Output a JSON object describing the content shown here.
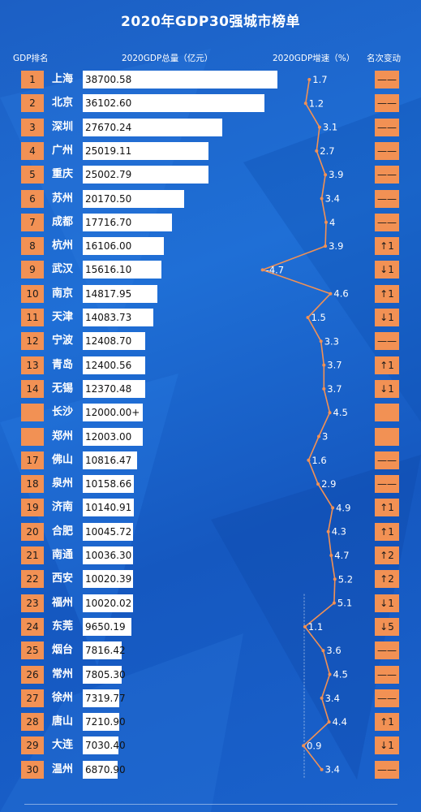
{
  "title": "2020年GDP30强城市榜单",
  "headers": {
    "rank": "GDP排名",
    "gdp": "2020GDP总量（亿元）",
    "growth": "2020GDP增速（%）",
    "change": "名次变动"
  },
  "colors": {
    "accent": "#f29154",
    "line": "#f29154",
    "bar": "#ffffff",
    "background": "#1c5fc4"
  },
  "chart_data": {
    "type": "bar",
    "title": "2020年GDP30强城市榜单",
    "gdp_max": 38700.58,
    "growth_range": [
      -4.7,
      5.2
    ],
    "rows": [
      {
        "rank": "1",
        "city": "上海",
        "gdp_label": "38700.58",
        "gdp": 38700.58,
        "growth_label": "1.7",
        "growth": 1.7,
        "change": "——"
      },
      {
        "rank": "2",
        "city": "北京",
        "gdp_label": "36102.60",
        "gdp": 36102.6,
        "growth_label": "1.2",
        "growth": 1.2,
        "change": "——"
      },
      {
        "rank": "3",
        "city": "深圳",
        "gdp_label": "27670.24",
        "gdp": 27670.24,
        "growth_label": "3.1",
        "growth": 3.1,
        "change": "——"
      },
      {
        "rank": "4",
        "city": "广州",
        "gdp_label": "25019.11",
        "gdp": 25019.11,
        "growth_label": "2.7",
        "growth": 2.7,
        "change": "——"
      },
      {
        "rank": "5",
        "city": "重庆",
        "gdp_label": "25002.79",
        "gdp": 25002.79,
        "growth_label": "3.9",
        "growth": 3.9,
        "change": "——"
      },
      {
        "rank": "6",
        "city": "苏州",
        "gdp_label": "20170.50",
        "gdp": 20170.5,
        "growth_label": "3.4",
        "growth": 3.4,
        "change": "——"
      },
      {
        "rank": "7",
        "city": "成都",
        "gdp_label": "17716.70",
        "gdp": 17716.7,
        "growth_label": "4",
        "growth": 4,
        "change": "——"
      },
      {
        "rank": "8",
        "city": "杭州",
        "gdp_label": "16106.00",
        "gdp": 16106.0,
        "growth_label": "3.9",
        "growth": 3.9,
        "change": "↑1"
      },
      {
        "rank": "9",
        "city": "武汉",
        "gdp_label": "15616.10",
        "gdp": 15616.1,
        "growth_label": "-4.7",
        "growth": -4.7,
        "change": "↓1"
      },
      {
        "rank": "10",
        "city": "南京",
        "gdp_label": "14817.95",
        "gdp": 14817.95,
        "growth_label": "4.6",
        "growth": 4.6,
        "change": "↑1"
      },
      {
        "rank": "11",
        "city": "天津",
        "gdp_label": "14083.73",
        "gdp": 14083.73,
        "growth_label": "1.5",
        "growth": 1.5,
        "change": "↓1"
      },
      {
        "rank": "12",
        "city": "宁波",
        "gdp_label": "12408.70",
        "gdp": 12408.7,
        "growth_label": "3.3",
        "growth": 3.3,
        "change": "——"
      },
      {
        "rank": "13",
        "city": "青岛",
        "gdp_label": "12400.56",
        "gdp": 12400.56,
        "growth_label": "3.7",
        "growth": 3.7,
        "change": "↑1"
      },
      {
        "rank": "14",
        "city": "无锡",
        "gdp_label": "12370.48",
        "gdp": 12370.48,
        "growth_label": "3.7",
        "growth": 3.7,
        "change": "↓1"
      },
      {
        "rank": "",
        "city": "长沙",
        "gdp_label": "12000.00+",
        "gdp": 12000.0,
        "growth_label": "4.5",
        "growth": 4.5,
        "change": ""
      },
      {
        "rank": "",
        "city": "郑州",
        "gdp_label": "12003.00",
        "gdp": 12003.0,
        "growth_label": "3",
        "growth": 3,
        "change": ""
      },
      {
        "rank": "17",
        "city": "佛山",
        "gdp_label": "10816.47",
        "gdp": 10816.47,
        "growth_label": "1.6",
        "growth": 1.6,
        "change": "——"
      },
      {
        "rank": "18",
        "city": "泉州",
        "gdp_label": "10158.66",
        "gdp": 10158.66,
        "growth_label": "2.9",
        "growth": 2.9,
        "change": "——"
      },
      {
        "rank": "19",
        "city": "济南",
        "gdp_label": "10140.91",
        "gdp": 10140.91,
        "growth_label": "4.9",
        "growth": 4.9,
        "change": "↑1"
      },
      {
        "rank": "20",
        "city": "合肥",
        "gdp_label": "10045.72",
        "gdp": 10045.72,
        "growth_label": "4.3",
        "growth": 4.3,
        "change": "↑1"
      },
      {
        "rank": "21",
        "city": "南通",
        "gdp_label": "10036.30",
        "gdp": 10036.3,
        "growth_label": "4.7",
        "growth": 4.7,
        "change": "↑2"
      },
      {
        "rank": "22",
        "city": "西安",
        "gdp_label": "10020.39",
        "gdp": 10020.39,
        "growth_label": "5.2",
        "growth": 5.2,
        "change": "↑2"
      },
      {
        "rank": "23",
        "city": "福州",
        "gdp_label": "10020.02",
        "gdp": 10020.02,
        "growth_label": "5.1",
        "growth": 5.1,
        "change": "↓1"
      },
      {
        "rank": "24",
        "city": "东莞",
        "gdp_label": "9650.19",
        "gdp": 9650.19,
        "growth_label": "1.1",
        "growth": 1.1,
        "change": "↓5"
      },
      {
        "rank": "25",
        "city": "烟台",
        "gdp_label": "7816.42",
        "gdp": 7816.42,
        "growth_label": "3.6",
        "growth": 3.6,
        "change": "——"
      },
      {
        "rank": "26",
        "city": "常州",
        "gdp_label": "7805.30",
        "gdp": 7805.3,
        "growth_label": "4.5",
        "growth": 4.5,
        "change": "——"
      },
      {
        "rank": "27",
        "city": "徐州",
        "gdp_label": "7319.77",
        "gdp": 7319.77,
        "growth_label": "3.4",
        "growth": 3.4,
        "change": "——"
      },
      {
        "rank": "28",
        "city": "唐山",
        "gdp_label": "7210.90",
        "gdp": 7210.9,
        "growth_label": "4.4",
        "growth": 4.4,
        "change": "↑1"
      },
      {
        "rank": "29",
        "city": "大连",
        "gdp_label": "7030.40",
        "gdp": 7030.4,
        "growth_label": "0.9",
        "growth": 0.9,
        "change": "↓1"
      },
      {
        "rank": "30",
        "city": "温州",
        "gdp_label": "6870.90",
        "gdp": 6870.9,
        "growth_label": "3.4",
        "growth": 3.4,
        "change": "——"
      }
    ]
  }
}
